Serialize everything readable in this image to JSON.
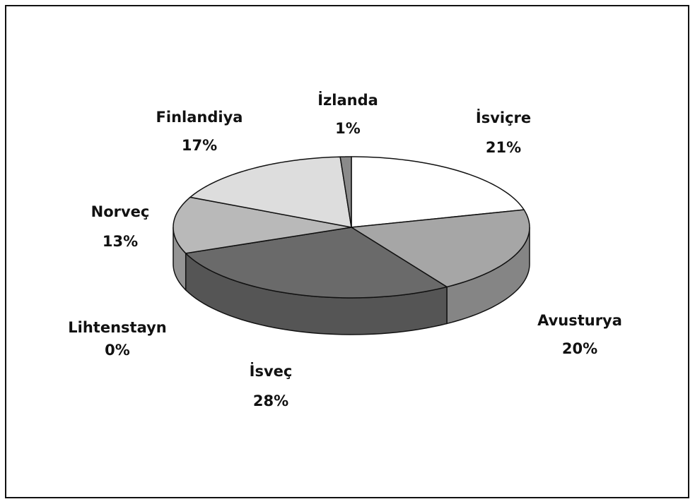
{
  "chart_data": {
    "type": "pie",
    "categories": [
      "İsviçre",
      "Avusturya",
      "İsveç",
      "Lihtenstayn",
      "Norveç",
      "Finlandiya",
      "İzlanda"
    ],
    "values": [
      21,
      20,
      28,
      0,
      13,
      17,
      1
    ],
    "value_labels": [
      "21%",
      "20%",
      "28%",
      "0%",
      "13%",
      "17%",
      "1%"
    ],
    "colors": [
      "#ffffff",
      "#a6a6a6",
      "#6a6a6a",
      "#909090",
      "#b9b9b9",
      "#dddddd",
      "#8a8a8a"
    ]
  }
}
